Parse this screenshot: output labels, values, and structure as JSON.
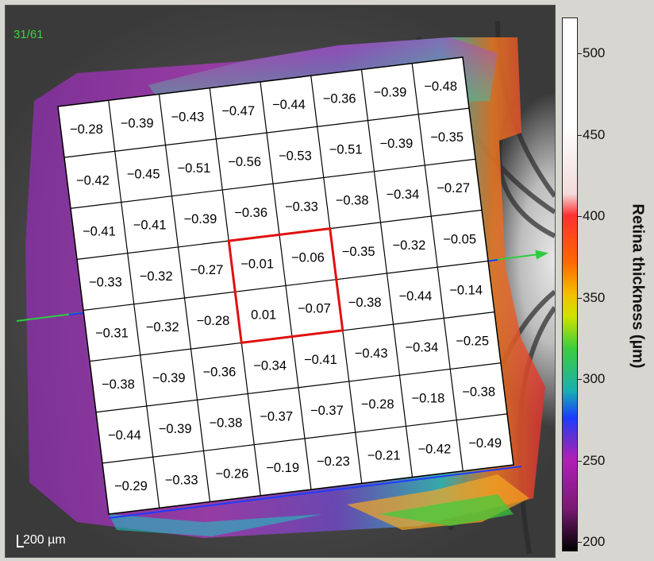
{
  "viewer": {
    "frame_counter": "31/61",
    "scale_bar": "200 µm"
  },
  "colorbar": {
    "title": "Retina thickness (µm)",
    "ticks": [
      "500",
      "450",
      "400",
      "350",
      "300",
      "250",
      "200"
    ],
    "range": [
      200,
      520
    ],
    "stops": [
      "#ffffff",
      "#f3dada",
      "#ff3030",
      "#ff6a00",
      "#f2c200",
      "#3ccd3c",
      "#18b0b0",
      "#1a3cff",
      "#b11fb6",
      "#000000"
    ]
  },
  "grid": {
    "rows": 8,
    "cols": 8,
    "highlight_color": "#e01010",
    "highlight_cells": [
      [
        3,
        3
      ],
      [
        3,
        4
      ],
      [
        4,
        3
      ],
      [
        4,
        4
      ]
    ],
    "values": [
      [
        "−0.28",
        "−0.39",
        "−0.43",
        "−0.47",
        "−0.44",
        "−0.36",
        "−0.39",
        "−0.48"
      ],
      [
        "−0.42",
        "−0.45",
        "−0.51",
        "−0.56",
        "−0.53",
        "−0.51",
        "−0.39",
        "−0.35"
      ],
      [
        "−0.41",
        "−0.41",
        "−0.39",
        "−0.36",
        "−0.33",
        "−0.38",
        "−0.34",
        "−0.27"
      ],
      [
        "−0.33",
        "−0.32",
        "−0.27",
        "−0.01",
        "−0.06",
        "−0.35",
        "−0.32",
        "−0.05"
      ],
      [
        "−0.31",
        "−0.32",
        "−0.28",
        "0.01",
        "−0.07",
        "−0.38",
        "−0.44",
        "−0.14"
      ],
      [
        "−0.38",
        "−0.39",
        "−0.36",
        "−0.34",
        "−0.41",
        "−0.43",
        "−0.34",
        "−0.25"
      ],
      [
        "−0.44",
        "−0.39",
        "−0.38",
        "−0.37",
        "−0.37",
        "−0.28",
        "−0.18",
        "−0.38"
      ],
      [
        "−0.29",
        "−0.33",
        "−0.26",
        "−0.19",
        "−0.23",
        "−0.21",
        "−0.42",
        "−0.49"
      ]
    ]
  },
  "scan_line_color": "#2ecc40",
  "scan_line_mid_color": "#1e3cff"
}
